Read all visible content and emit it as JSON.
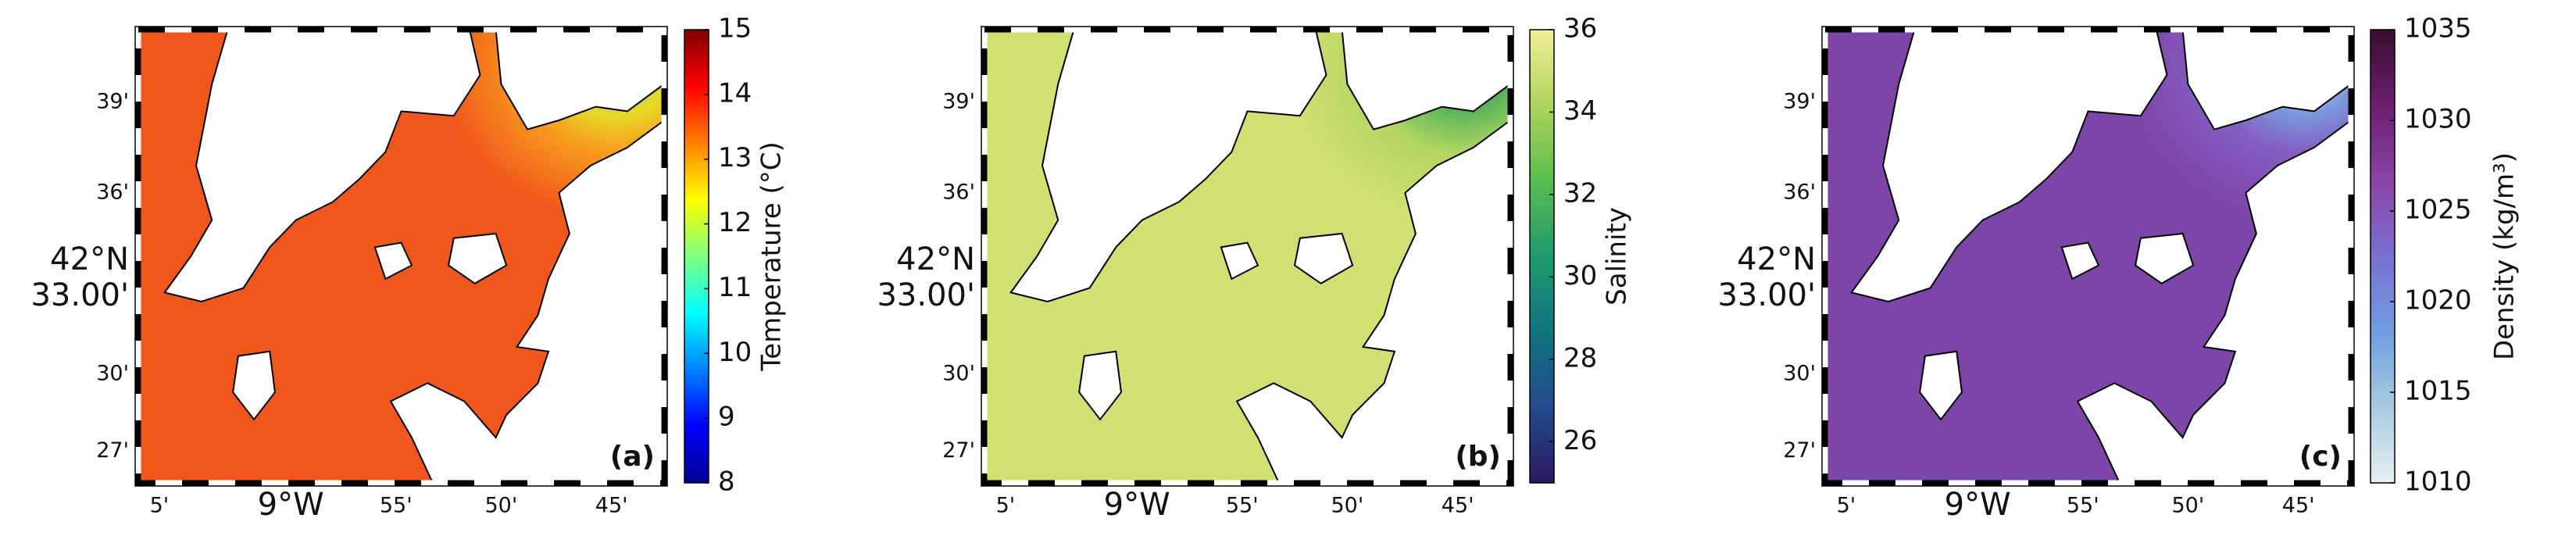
{
  "panels": [
    {
      "label": "(a)",
      "colorbar": {
        "label": "Temperature (°C)",
        "lim": [
          8,
          15
        ],
        "ticks": [
          8,
          9,
          10,
          11,
          12,
          13,
          14,
          15
        ],
        "colormap": [
          "#00008f",
          "#0000ff",
          "#0080ff",
          "#00ffff",
          "#80ff80",
          "#ffff00",
          "#ff8000",
          "#ff0000",
          "#800000"
        ]
      },
      "field_colors": [
        "#f0571c",
        "#f7a21e",
        "#e9e82a",
        "#2fd3e0"
      ],
      "xticks": [
        "5'",
        "9°W",
        "55'",
        "50'",
        "45'"
      ],
      "yticks": [
        "39'",
        "36'",
        "33.00'",
        "30'",
        "27'"
      ],
      "lat_label": "42°N"
    },
    {
      "label": "(b)",
      "colorbar": {
        "label": "Salinity",
        "lim": [
          25,
          36
        ],
        "ticks": [
          26,
          28,
          30,
          32,
          34,
          36
        ],
        "colormap": [
          "#2a1961",
          "#234b8a",
          "#11737f",
          "#1f9a6e",
          "#5bbb4e",
          "#aed45f",
          "#f3ee9a"
        ]
      },
      "field_colors": [
        "#d2df72",
        "#aed45f",
        "#57b45a",
        "#1e3f7e"
      ],
      "xticks": [
        "5'",
        "9°W",
        "55'",
        "50'",
        "45'"
      ],
      "yticks": [
        "39'",
        "36'",
        "33.00'",
        "30'",
        "27'"
      ],
      "lat_label": "42°N"
    },
    {
      "label": "(c)",
      "colorbar": {
        "label": "Density (kg/m³)",
        "lim": [
          1010,
          1035
        ],
        "ticks": [
          1010,
          1015,
          1020,
          1025,
          1030,
          1035
        ],
        "colormap": [
          "#e6f1f1",
          "#a9cbe0",
          "#6f9ee0",
          "#7a6fd0",
          "#8a44a6",
          "#6a1f6e",
          "#3a0c2e"
        ]
      },
      "field_colors": [
        "#7d45a8",
        "#8560c4",
        "#7aa0e0",
        "#e3eff0"
      ],
      "xticks": [
        "5'",
        "9°W",
        "55'",
        "50'",
        "45'"
      ],
      "yticks": [
        "39'",
        "36'",
        "33.00'",
        "30'",
        "27'"
      ],
      "lat_label": "42°N"
    }
  ]
}
